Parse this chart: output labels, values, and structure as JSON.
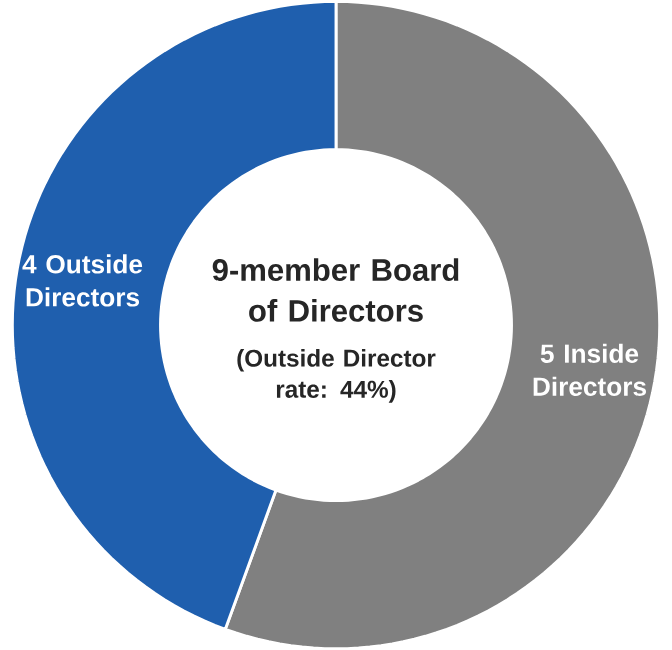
{
  "chart_data": {
    "type": "donut",
    "title": "9-member Board of Directors",
    "subtitle": "(Outside Director rate: 44%)",
    "categories": [
      "5 Inside Directors",
      "4 Outside Directors"
    ],
    "values": [
      5,
      4
    ],
    "colors": [
      "#808080",
      "#1f5fae"
    ]
  }
}
